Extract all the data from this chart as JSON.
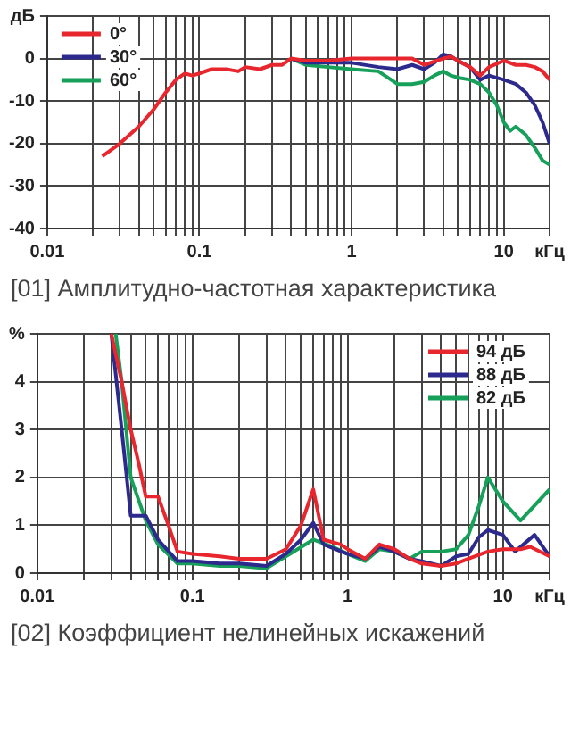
{
  "chart_data": [
    {
      "type": "line",
      "log": "x",
      "grid": true,
      "legend": "top left",
      "marker": "none",
      "xlim": [
        0.01,
        20
      ],
      "ylim": [
        -40,
        10
      ],
      "xticks": [
        0.01,
        {
          "value": 0.02,
          "label": null
        },
        {
          "value": 0.03,
          "label": null
        },
        {
          "value": 0.04,
          "label": null
        },
        {
          "value": 0.05,
          "label": null
        },
        {
          "value": 0.06,
          "label": null
        },
        {
          "value": 0.07,
          "label": null
        },
        {
          "value": 0.08,
          "label": null
        },
        {
          "value": 0.09,
          "label": null
        },
        0.1,
        {
          "value": 0.2,
          "label": null
        },
        {
          "value": 0.3,
          "label": null
        },
        {
          "value": 0.4,
          "label": null
        },
        {
          "value": 0.5,
          "label": null
        },
        {
          "value": 0.6,
          "label": null
        },
        {
          "value": 0.7,
          "label": null
        },
        {
          "value": 0.8,
          "label": null
        },
        {
          "value": 0.9,
          "label": null
        },
        1,
        {
          "value": 2,
          "label": null
        },
        {
          "value": 3,
          "label": null
        },
        {
          "value": 4,
          "label": null
        },
        {
          "value": 5,
          "label": null
        },
        {
          "value": 6,
          "label": null
        },
        {
          "value": 7,
          "label": null
        },
        {
          "value": 8,
          "label": null
        },
        {
          "value": 9,
          "label": null
        },
        10,
        {
          "value": 20,
          "label": "кГц"
        }
      ],
      "yticks": [
        -40,
        -30,
        -20,
        -10,
        0,
        {
          "value": 10,
          "label": "дБ"
        }
      ],
      "annotations": [
        "[01] Амплитудно-частотная характеристика"
      ],
      "series": [
        {
          "name": "0°",
          "color": "#e8262e",
          "x": [
            0.023,
            0.03,
            0.04,
            0.05,
            0.06,
            0.07,
            0.08,
            0.09,
            0.1,
            0.12,
            0.15,
            0.18,
            0.2,
            0.25,
            0.3,
            0.35,
            0.4,
            0.5,
            0.7,
            1,
            1.5,
            2,
            2.5,
            3,
            4,
            4.5,
            5,
            6,
            7,
            8,
            10,
            12,
            14,
            16,
            18,
            20
          ],
          "values": [
            -23,
            -20,
            -16,
            -12,
            -8,
            -5,
            -3.5,
            -4,
            -3.5,
            -2.5,
            -2.5,
            -3,
            -2,
            -2.5,
            -1.5,
            -1.5,
            0,
            -0.5,
            -0.5,
            0,
            0,
            0,
            0,
            -1.5,
            0,
            0.5,
            -0.5,
            -2,
            -4,
            -2,
            -0.5,
            -1.5,
            -1.5,
            -2,
            -3,
            -5
          ]
        },
        {
          "name": "30°",
          "color": "#2c2a8c",
          "x": [
            0.4,
            0.5,
            0.7,
            1,
            1.5,
            2,
            2.5,
            3,
            3.5,
            4,
            4.5,
            5,
            6,
            7,
            8,
            10,
            12,
            14,
            16,
            18,
            20
          ],
          "values": [
            0,
            -1,
            -1,
            -1,
            -2,
            -2.5,
            -1.5,
            -2.5,
            -1,
            1,
            0.5,
            -0.5,
            -2,
            -5,
            -4,
            -5,
            -6,
            -8,
            -11,
            -15,
            -20
          ]
        },
        {
          "name": "60°",
          "color": "#16a05a",
          "x": [
            0.4,
            0.5,
            0.7,
            1,
            1.5,
            2,
            2.5,
            3,
            3.5,
            4,
            4.5,
            5,
            6,
            7,
            8,
            9,
            10,
            11,
            12,
            14,
            16,
            18,
            20
          ],
          "values": [
            0,
            -1.5,
            -2,
            -2.5,
            -3,
            -6,
            -6,
            -5.5,
            -4,
            -3,
            -4,
            -4.5,
            -5,
            -6,
            -8,
            -11,
            -15,
            -17,
            -16,
            -18,
            -21,
            -24,
            -25
          ]
        }
      ]
    },
    {
      "type": "line",
      "log": "x",
      "grid": true,
      "legend": "top right",
      "marker": "none",
      "xlim": [
        0.01,
        20
      ],
      "ylim": [
        0,
        5
      ],
      "xticks": [
        0.01,
        {
          "value": 0.02,
          "label": null
        },
        {
          "value": 0.03,
          "label": null
        },
        {
          "value": 0.04,
          "label": null
        },
        {
          "value": 0.05,
          "label": null
        },
        {
          "value": 0.06,
          "label": null
        },
        {
          "value": 0.07,
          "label": null
        },
        {
          "value": 0.08,
          "label": null
        },
        {
          "value": 0.09,
          "label": null
        },
        0.1,
        {
          "value": 0.2,
          "label": null
        },
        {
          "value": 0.3,
          "label": null
        },
        {
          "value": 0.4,
          "label": null
        },
        {
          "value": 0.5,
          "label": null
        },
        {
          "value": 0.6,
          "label": null
        },
        {
          "value": 0.7,
          "label": null
        },
        {
          "value": 0.8,
          "label": null
        },
        {
          "value": 0.9,
          "label": null
        },
        1,
        {
          "value": 2,
          "label": null
        },
        {
          "value": 3,
          "label": null
        },
        {
          "value": 4,
          "label": null
        },
        {
          "value": 5,
          "label": null
        },
        {
          "value": 6,
          "label": null
        },
        {
          "value": 7,
          "label": null
        },
        {
          "value": 8,
          "label": null
        },
        {
          "value": 9,
          "label": null
        },
        10,
        {
          "value": 20,
          "label": "кГц"
        }
      ],
      "yticks": [
        0,
        1,
        2,
        3,
        4,
        {
          "value": 5,
          "label": "%"
        }
      ],
      "annotations": [
        "[02] Коэффициент нелинейных искажений"
      ],
      "series": [
        {
          "name": "94 дБ",
          "color": "#e8262e",
          "x": [
            0.03,
            0.035,
            0.04,
            0.045,
            0.05,
            0.06,
            0.07,
            0.08,
            0.1,
            0.15,
            0.2,
            0.3,
            0.4,
            0.5,
            0.6,
            0.7,
            0.9,
            1,
            1.3,
            1.6,
            2,
            2.5,
            3,
            4,
            5,
            6,
            8,
            10,
            13,
            15,
            20
          ],
          "values": [
            5,
            4,
            3,
            2.3,
            1.6,
            1.6,
            1,
            0.45,
            0.4,
            0.35,
            0.3,
            0.3,
            0.5,
            1,
            1.75,
            0.7,
            0.6,
            0.5,
            0.3,
            0.6,
            0.5,
            0.3,
            0.2,
            0.15,
            0.2,
            0.3,
            0.45,
            0.5,
            0.5,
            0.55,
            0.35
          ]
        },
        {
          "name": "88 дБ",
          "color": "#2c2a8c",
          "x": [
            0.03,
            0.035,
            0.04,
            0.045,
            0.05,
            0.06,
            0.08,
            0.1,
            0.15,
            0.2,
            0.3,
            0.4,
            0.5,
            0.6,
            0.7,
            1,
            1.3,
            1.6,
            2,
            2.5,
            3,
            4,
            5,
            6,
            7,
            8,
            10,
            12,
            16,
            20
          ],
          "values": [
            5,
            3,
            1.2,
            1.2,
            1.2,
            0.7,
            0.25,
            0.25,
            0.2,
            0.2,
            0.15,
            0.4,
            0.7,
            1.05,
            0.6,
            0.4,
            0.3,
            0.55,
            0.45,
            0.3,
            0.25,
            0.15,
            0.35,
            0.4,
            0.75,
            0.9,
            0.8,
            0.45,
            0.8,
            0.35
          ]
        },
        {
          "name": "82 дБ",
          "color": "#16a05a",
          "x": [
            0.032,
            0.035,
            0.04,
            0.05,
            0.06,
            0.08,
            0.1,
            0.15,
            0.2,
            0.3,
            0.4,
            0.6,
            0.8,
            1,
            1.3,
            1.6,
            2,
            2.5,
            3,
            4,
            5,
            6,
            7,
            8,
            10,
            13,
            20
          ],
          "values": [
            5,
            4,
            2,
            1.1,
            0.6,
            0.2,
            0.2,
            0.15,
            0.15,
            0.1,
            0.35,
            0.7,
            0.55,
            0.4,
            0.25,
            0.5,
            0.45,
            0.3,
            0.45,
            0.45,
            0.5,
            0.8,
            1.4,
            2,
            1.5,
            1.1,
            1.75
          ]
        }
      ]
    }
  ]
}
